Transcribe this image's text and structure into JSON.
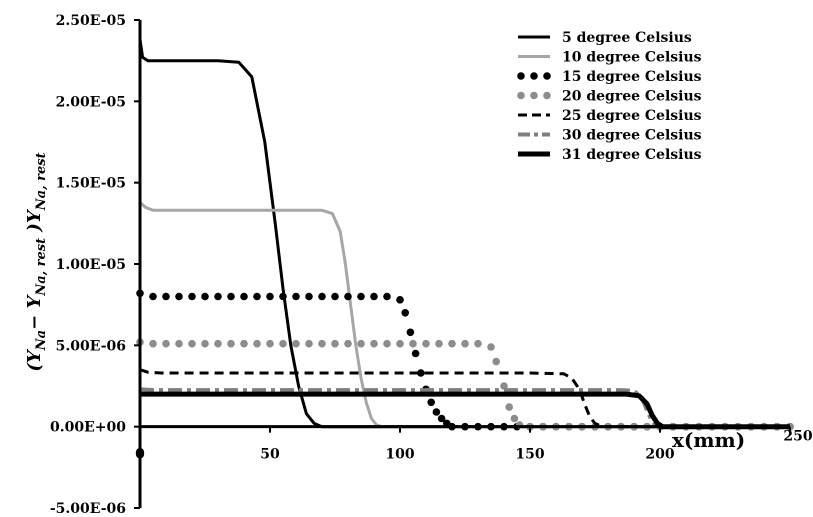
{
  "chart_data": {
    "type": "line",
    "title": "",
    "xlabel": "x(mm)",
    "ylabel": "(Y_Na − Y_Na,rest )Y_Na,rest",
    "ylabel_parts": {
      "open": "(",
      "y1": "Y",
      "sub1": "Na",
      "minus": "− ",
      "y2": "Y",
      "sub2": "Na, rest",
      "close": " )",
      "y3": "Y",
      "sub3": "Na, rest"
    },
    "xlim": [
      0,
      250
    ],
    "ylim": [
      -5e-06,
      2.5e-05
    ],
    "x_ticks": [
      {
        "value": 0,
        "label": "0"
      },
      {
        "value": 50,
        "label": "50"
      },
      {
        "value": 100,
        "label": "100"
      },
      {
        "value": 150,
        "label": "150"
      },
      {
        "value": 200,
        "label": "200"
      },
      {
        "value": 250,
        "label": "250"
      }
    ],
    "y_ticks": [
      {
        "value": 2.5e-05,
        "label": "2.50E-05"
      },
      {
        "value": 2e-05,
        "label": "2.00E-05"
      },
      {
        "value": 1.5e-05,
        "label": "1.50E-05"
      },
      {
        "value": 1e-05,
        "label": "1.00E-05"
      },
      {
        "value": 5e-06,
        "label": "5.00E-06"
      },
      {
        "value": 0,
        "label": "0.00E+00"
      },
      {
        "value": -5e-06,
        "label": "-5.00E-06"
      }
    ],
    "grid": false,
    "legend_position": "top-right",
    "series": [
      {
        "name": "5 degree Celsius",
        "style": "solid",
        "color": "#000000",
        "x": [
          0,
          1,
          3,
          10,
          20,
          30,
          38,
          43,
          48,
          52,
          55,
          58,
          61,
          64,
          67,
          70,
          75,
          80,
          100,
          150,
          200,
          250
        ],
        "y": [
          2.38e-05,
          2.27e-05,
          2.25e-05,
          2.25e-05,
          2.25e-05,
          2.25e-05,
          2.24e-05,
          2.15e-05,
          1.75e-05,
          1.25e-05,
          8.5e-06,
          5e-06,
          2.5e-06,
          8e-07,
          2e-07,
          0,
          0,
          0,
          0,
          0,
          0,
          0
        ]
      },
      {
        "name": "10 degree Celsius",
        "style": "solid",
        "color": "#a6a6a6",
        "x": [
          0,
          2,
          5,
          10,
          20,
          40,
          60,
          70,
          74,
          77,
          79,
          81,
          83,
          85,
          87,
          89,
          91,
          93,
          100,
          150,
          200,
          250
        ],
        "y": [
          1.38e-05,
          1.35e-05,
          1.33e-05,
          1.33e-05,
          1.33e-05,
          1.33e-05,
          1.33e-05,
          1.33e-05,
          1.31e-05,
          1.2e-05,
          1e-05,
          7.5e-06,
          5e-06,
          3e-06,
          1.5e-06,
          5e-07,
          1e-07,
          0,
          0,
          0,
          0,
          0
        ]
      },
      {
        "name": "15 degree Celsius",
        "style": "dot",
        "color": "#000000",
        "x": [
          0,
          5,
          10,
          15,
          20,
          25,
          30,
          35,
          40,
          45,
          50,
          55,
          60,
          65,
          70,
          75,
          80,
          85,
          90,
          95,
          100,
          102,
          104,
          106,
          108,
          110,
          112,
          114,
          116,
          118,
          120,
          125,
          130,
          135,
          140,
          145,
          150,
          155,
          160,
          165,
          170,
          175,
          180,
          185,
          190,
          195,
          200,
          205,
          210,
          215,
          220,
          225,
          230,
          235,
          240,
          245,
          250
        ],
        "y": [
          8.2e-06,
          8e-06,
          8e-06,
          8e-06,
          8e-06,
          8e-06,
          8e-06,
          8e-06,
          8e-06,
          8e-06,
          8e-06,
          8e-06,
          8e-06,
          8e-06,
          8e-06,
          8e-06,
          8e-06,
          8e-06,
          8e-06,
          8e-06,
          7.8e-06,
          7e-06,
          5.8e-06,
          4.5e-06,
          3.3e-06,
          2.3e-06,
          1.5e-06,
          9e-07,
          5e-07,
          2e-07,
          0,
          0,
          0,
          0,
          0,
          0,
          0,
          0,
          0,
          0,
          0,
          0,
          0,
          0,
          0,
          0,
          0,
          0,
          0,
          0,
          0,
          0,
          0,
          0,
          0,
          0,
          0
        ]
      },
      {
        "name": "20 degree Celsius",
        "style": "dot",
        "color": "#8c8c8c",
        "x": [
          0,
          5,
          10,
          15,
          20,
          25,
          30,
          35,
          40,
          45,
          50,
          55,
          60,
          65,
          70,
          75,
          80,
          85,
          90,
          95,
          100,
          105,
          110,
          115,
          120,
          125,
          130,
          135,
          137,
          140,
          142,
          144,
          146,
          150,
          155,
          160,
          165,
          170,
          175,
          180,
          185,
          190,
          195,
          200,
          205,
          210,
          215,
          220,
          225,
          230,
          235,
          240,
          245,
          250
        ],
        "y": [
          5.2e-06,
          5.1e-06,
          5.1e-06,
          5.1e-06,
          5.1e-06,
          5.1e-06,
          5.1e-06,
          5.1e-06,
          5.1e-06,
          5.1e-06,
          5.1e-06,
          5.1e-06,
          5.1e-06,
          5.1e-06,
          5.1e-06,
          5.1e-06,
          5.1e-06,
          5.1e-06,
          5.1e-06,
          5.1e-06,
          5.1e-06,
          5.1e-06,
          5.1e-06,
          5.1e-06,
          5.1e-06,
          5.1e-06,
          5.1e-06,
          4.9e-06,
          4e-06,
          2.5e-06,
          1.2e-06,
          5e-07,
          1e-07,
          0,
          0,
          0,
          0,
          0,
          0,
          0,
          0,
          0,
          0,
          0,
          0,
          0,
          0,
          0,
          0,
          0,
          0,
          0,
          0,
          0
        ]
      },
      {
        "name": "25  degree Celsius",
        "style": "dash",
        "color": "#000000",
        "x": [
          0,
          3,
          8,
          20,
          50,
          100,
          150,
          163,
          166,
          169,
          171,
          173,
          175,
          178,
          182,
          200,
          250
        ],
        "y": [
          3.5e-06,
          3.35e-06,
          3.3e-06,
          3.3e-06,
          3.3e-06,
          3.3e-06,
          3.3e-06,
          3.25e-06,
          3e-06,
          2.3e-06,
          1.4e-06,
          6e-07,
          2e-07,
          0,
          0,
          0,
          0
        ]
      },
      {
        "name": "30  degree Celsius",
        "style": "dashdot",
        "color": "#7f7f7f",
        "x": [
          0,
          5,
          20,
          50,
          100,
          150,
          185,
          190,
          193,
          195,
          197,
          199,
          202,
          250
        ],
        "y": [
          2.3e-06,
          2.25e-06,
          2.25e-06,
          2.25e-06,
          2.25e-06,
          2.25e-06,
          2.25e-06,
          2.2e-06,
          1.8e-06,
          1e-06,
          3e-07,
          0,
          0,
          0
        ]
      },
      {
        "name": "31 degree Celsius",
        "style": "thick",
        "color": "#000000",
        "x": [
          0,
          2,
          10,
          50,
          100,
          150,
          187,
          192,
          195,
          197,
          199,
          201,
          205,
          250
        ],
        "y": [
          2e-06,
          2e-06,
          2e-06,
          2e-06,
          2e-06,
          2e-06,
          2e-06,
          1.9e-06,
          1.4e-06,
          7e-07,
          2e-07,
          0,
          0,
          0
        ]
      }
    ]
  }
}
